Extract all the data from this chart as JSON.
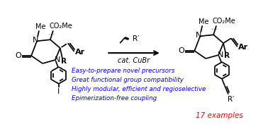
{
  "bg_color": "#ffffff",
  "blue_color": "#0000ff",
  "red_color": "#ff0000",
  "black_color": "#000000",
  "bullet_texts": [
    "Easy-to-prepare novel precursors",
    "Great functional group compatibility",
    "Highly modular, efficient and regioselective",
    "Epimerization-free coupling"
  ],
  "examples_text": "17 examples",
  "figsize": [
    3.78,
    1.83
  ],
  "dpi": 100
}
